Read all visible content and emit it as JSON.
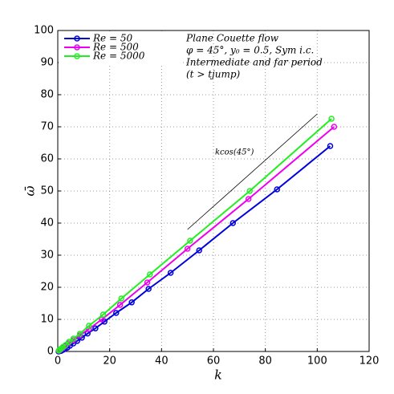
{
  "chart_data": {
    "type": "line",
    "x_label": "k",
    "y_label": "ω̄",
    "xlim": [
      0,
      120
    ],
    "ylim": [
      0,
      100
    ],
    "xticks": [
      0,
      20,
      40,
      60,
      80,
      100,
      120
    ],
    "yticks": [
      0,
      10,
      20,
      30,
      40,
      50,
      60,
      70,
      80,
      90,
      100
    ],
    "grid": true,
    "legend": "upper-left",
    "annotation_lines": [
      "Plane Couette flow",
      "φ = 45°, y₀ = 0.5, Sym i.c.",
      "Intermediate and far period",
      "(t > tjump)"
    ],
    "reference_line": {
      "label": "kcos(45°)",
      "x": [
        50,
        100
      ],
      "y": [
        38,
        74
      ]
    },
    "series": [
      {
        "name": "Re = 50",
        "color": "#0000dd",
        "x": [
          0.3,
          0.7,
          1.3,
          2,
          2.8,
          3.7,
          4.7,
          6,
          7.5,
          9.3,
          11.5,
          14.5,
          18,
          22.5,
          28.5,
          35,
          43.5,
          54.5,
          67.5,
          84.5,
          105
        ],
        "values": [
          0,
          0.1,
          0.2,
          0.5,
          0.8,
          1.2,
          1.8,
          2.5,
          3.3,
          4.3,
          5.6,
          7.2,
          9.3,
          12,
          15.3,
          19.5,
          24.5,
          31.5,
          40,
          50.5,
          64
        ]
      },
      {
        "name": "Re = 500",
        "color": "#ee00ee",
        "x": [
          0.4,
          0.8,
          1.3,
          2,
          2.8,
          4,
          6,
          8.5,
          12,
          17,
          24,
          34.5,
          50,
          73.5,
          106.5
        ],
        "values": [
          0.2,
          0.4,
          0.7,
          1.1,
          1.7,
          2.5,
          3.5,
          5,
          7,
          10,
          14.5,
          21.5,
          32,
          47.5,
          70
        ]
      },
      {
        "name": "Re = 5000",
        "color": "#22ee22",
        "x": [
          0.4,
          0.8,
          1.3,
          2,
          3,
          4.3,
          6,
          8.5,
          12,
          17.5,
          24.5,
          35.5,
          51,
          74,
          105.5
        ],
        "values": [
          0.3,
          0.5,
          0.9,
          1.4,
          2,
          3,
          4,
          5.5,
          8,
          11.5,
          16.5,
          24,
          34.5,
          50,
          72.5
        ]
      }
    ]
  }
}
